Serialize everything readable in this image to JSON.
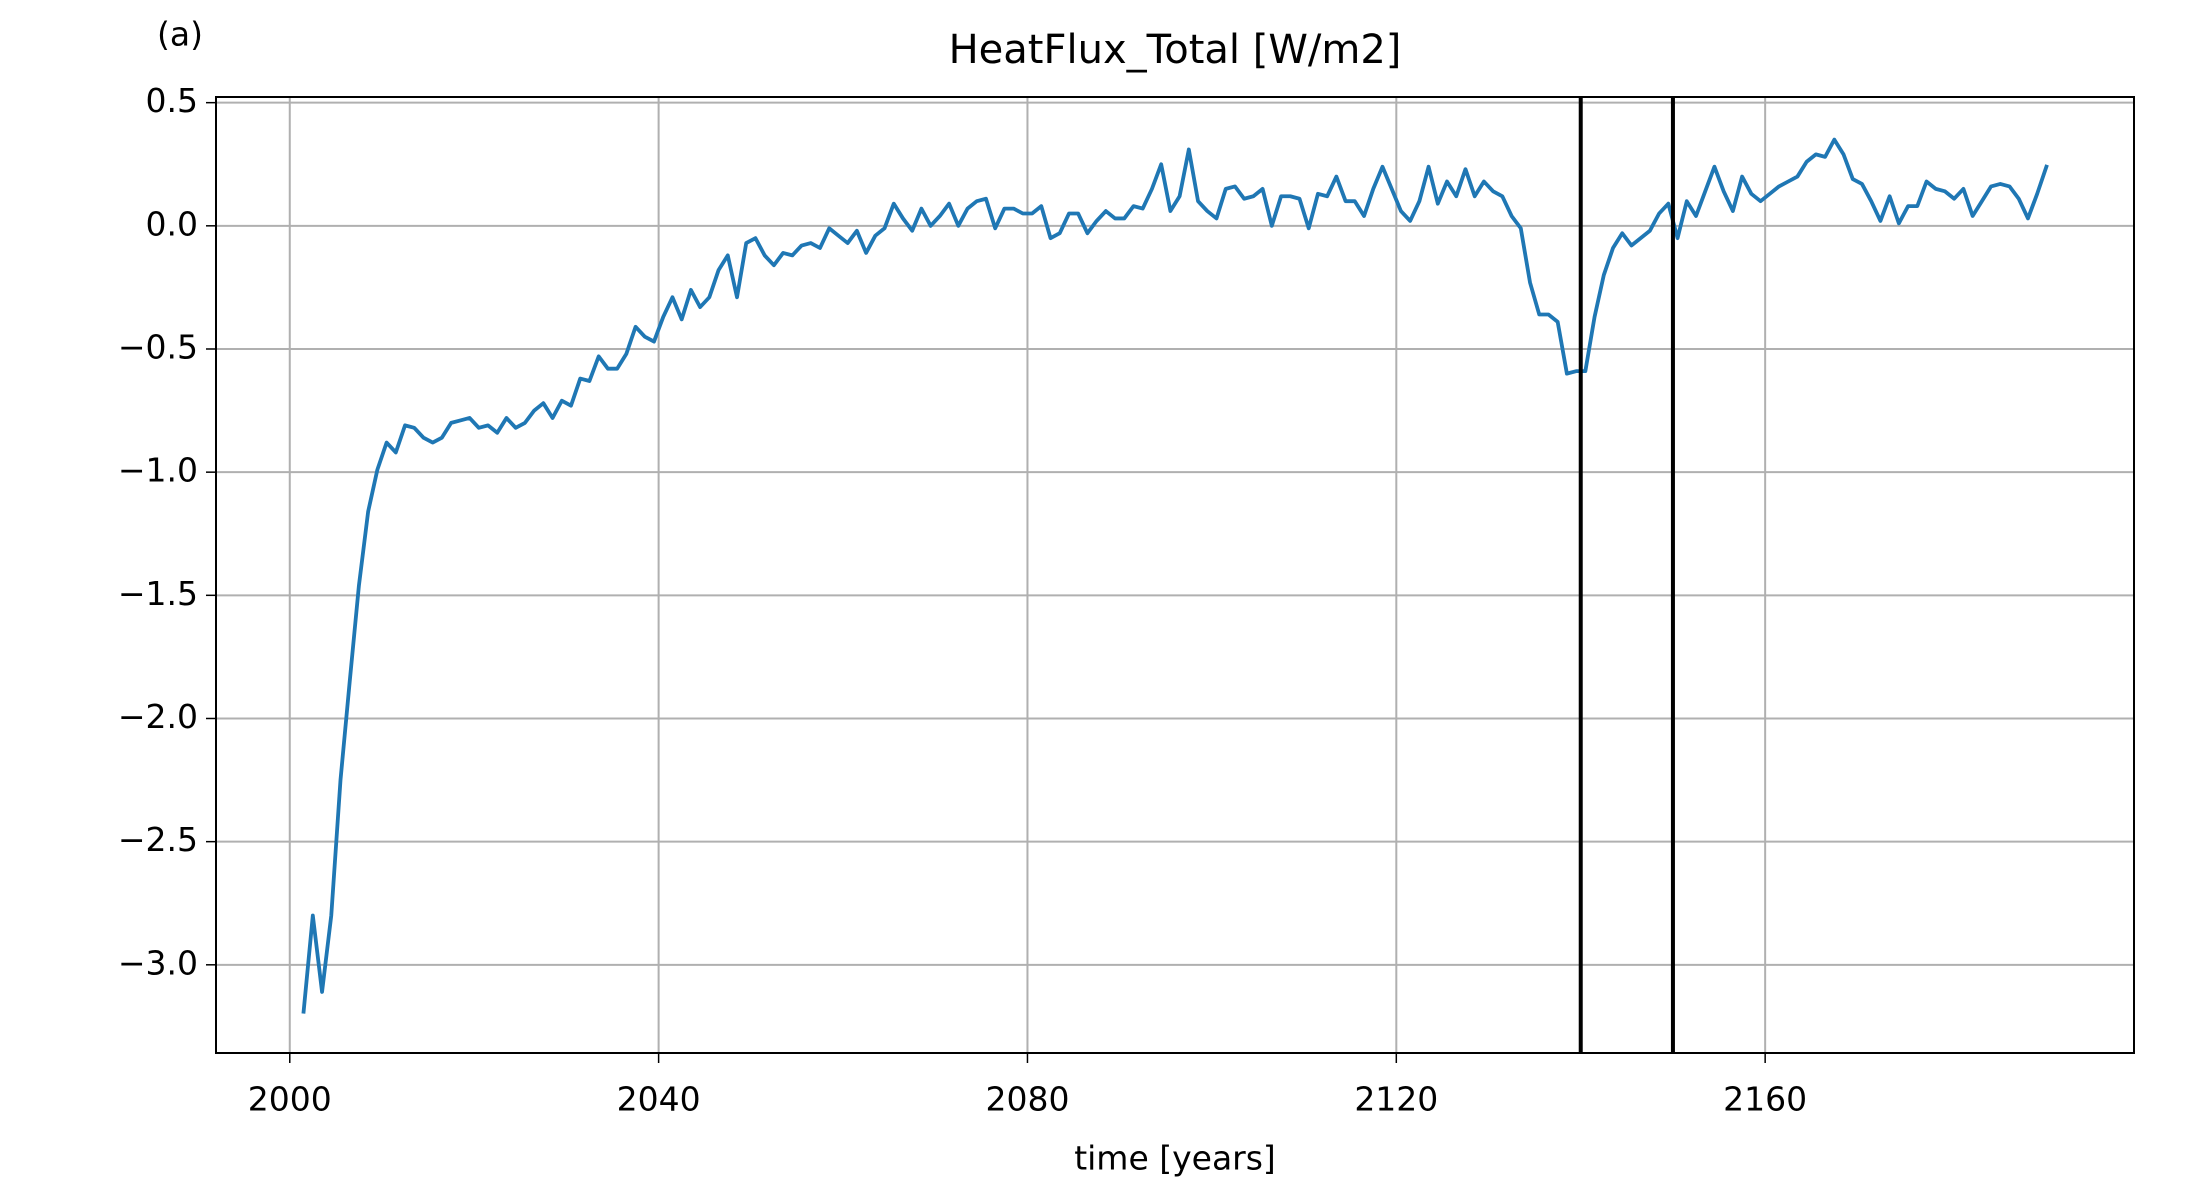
{
  "chart_data": {
    "type": "line",
    "panel_label": "(a)",
    "title": "HeatFlux_Total [W/m2]",
    "x_label": "time [years]",
    "x": [
      2001.5,
      2002.5,
      2003.5,
      2004.5,
      2005.5,
      2006.5,
      2007.5,
      2008.5,
      2009.5,
      2010.5,
      2011.5,
      2012.5,
      2013.5,
      2014.5,
      2015.5,
      2016.5,
      2017.5,
      2018.5,
      2019.5,
      2020.5,
      2021.5,
      2022.5,
      2023.5,
      2024.5,
      2025.5,
      2026.5,
      2027.5,
      2028.5,
      2029.5,
      2030.5,
      2031.5,
      2032.5,
      2033.5,
      2034.5,
      2035.5,
      2036.5,
      2037.5,
      2038.5,
      2039.5,
      2040.5,
      2041.5,
      2042.5,
      2043.5,
      2044.5,
      2045.5,
      2046.5,
      2047.5,
      2048.5,
      2049.5,
      2050.5,
      2051.5,
      2052.5,
      2053.5,
      2054.5,
      2055.5,
      2056.5,
      2057.5,
      2058.5,
      2059.5,
      2060.5,
      2061.5,
      2062.5,
      2063.5,
      2064.5,
      2065.5,
      2066.5,
      2067.5,
      2068.5,
      2069.5,
      2070.5,
      2071.5,
      2072.5,
      2073.5,
      2074.5,
      2075.5,
      2076.5,
      2077.5,
      2078.5,
      2079.5,
      2080.5,
      2081.5,
      2082.5,
      2083.5,
      2084.5,
      2085.5,
      2086.5,
      2087.5,
      2088.5,
      2089.5,
      2090.5,
      2091.5,
      2092.5,
      2093.5,
      2094.5,
      2095.5,
      2096.5,
      2097.5,
      2098.5,
      2099.5,
      2100.5,
      2101.5,
      2102.5,
      2103.5,
      2104.5,
      2105.5,
      2106.5,
      2107.5,
      2108.5,
      2109.5,
      2110.5,
      2111.5,
      2112.5,
      2113.5,
      2114.5,
      2115.5,
      2116.5,
      2117.5,
      2118.5,
      2119.5,
      2120.5,
      2121.5,
      2122.5,
      2123.5,
      2124.5,
      2125.5,
      2126.5,
      2127.5,
      2128.5,
      2129.5,
      2130.5,
      2131.5,
      2132.5,
      2133.5,
      2134.5,
      2135.5,
      2136.5,
      2137.5,
      2138.5,
      2139.5,
      2140.5,
      2141.5,
      2142.5,
      2143.5,
      2144.5,
      2145.5,
      2146.5,
      2147.5,
      2148.5,
      2149.5,
      2150.5,
      2151.5,
      2152.5,
      2153.5,
      2154.5,
      2155.5,
      2156.5,
      2157.5,
      2158.5,
      2159.5,
      2160.5,
      2161.5,
      2162.5,
      2163.5,
      2164.5,
      2165.5,
      2166.5,
      2167.5,
      2168.5,
      2169.5,
      2170.5,
      2171.5,
      2172.5,
      2173.5,
      2174.5,
      2175.5,
      2176.5,
      2177.5,
      2178.5,
      2179.5,
      2180.5,
      2181.5,
      2182.5,
      2183.5,
      2184.5,
      2185.5,
      2186.5,
      2187.5,
      2188.5,
      2189.5,
      2190.5
    ],
    "series": [
      {
        "color": "#1f77b4",
        "values": [
          -3.19,
          -2.8,
          -3.11,
          -2.8,
          -2.25,
          -1.85,
          -1.46,
          -1.16,
          -0.99,
          -0.88,
          -0.92,
          -0.81,
          -0.82,
          -0.86,
          -0.88,
          -0.86,
          -0.8,
          -0.79,
          -0.78,
          -0.82,
          -0.81,
          -0.84,
          -0.78,
          -0.82,
          -0.8,
          -0.75,
          -0.72,
          -0.78,
          -0.71,
          -0.73,
          -0.62,
          -0.63,
          -0.53,
          -0.58,
          -0.58,
          -0.52,
          -0.41,
          -0.45,
          -0.47,
          -0.37,
          -0.29,
          -0.38,
          -0.26,
          -0.33,
          -0.29,
          -0.18,
          -0.12,
          -0.29,
          -0.07,
          -0.05,
          -0.12,
          -0.16,
          -0.11,
          -0.12,
          -0.08,
          -0.07,
          -0.09,
          -0.01,
          -0.04,
          -0.07,
          -0.02,
          -0.11,
          -0.04,
          -0.01,
          0.09,
          0.03,
          -0.02,
          0.07,
          0.0,
          0.04,
          0.09,
          0.0,
          0.07,
          0.1,
          0.11,
          -0.01,
          0.07,
          0.07,
          0.05,
          0.05,
          0.08,
          -0.05,
          -0.03,
          0.05,
          0.05,
          -0.03,
          0.02,
          0.06,
          0.03,
          0.03,
          0.08,
          0.07,
          0.15,
          0.25,
          0.06,
          0.12,
          0.31,
          0.1,
          0.06,
          0.03,
          0.15,
          0.16,
          0.11,
          0.12,
          0.15,
          0.0,
          0.12,
          0.12,
          0.11,
          -0.01,
          0.13,
          0.12,
          0.2,
          0.1,
          0.1,
          0.04,
          0.15,
          0.24,
          0.15,
          0.06,
          0.02,
          0.1,
          0.24,
          0.09,
          0.18,
          0.12,
          0.23,
          0.12,
          0.18,
          0.14,
          0.12,
          0.04,
          -0.01,
          -0.23,
          -0.36,
          -0.36,
          -0.39,
          -0.6,
          -0.59,
          -0.59,
          -0.37,
          -0.2,
          -0.09,
          -0.03,
          -0.08,
          -0.05,
          -0.02,
          0.05,
          0.09,
          -0.05,
          0.1,
          0.04,
          0.14,
          0.24,
          0.14,
          0.06,
          0.2,
          0.13,
          0.1,
          0.13,
          0.16,
          0.18,
          0.2,
          0.26,
          0.29,
          0.28,
          0.35,
          0.29,
          0.19,
          0.17,
          0.1,
          0.02,
          0.12,
          0.01,
          0.08,
          0.08,
          0.18,
          0.15,
          0.14,
          0.11,
          0.15,
          0.04,
          0.1,
          0.16,
          0.17,
          0.16,
          0.11,
          0.03,
          0.13,
          0.24
        ]
      }
    ],
    "vlines": [
      2140,
      2150
    ],
    "vline_color": "#000000",
    "xlim": [
      1992,
      2200
    ],
    "ylim": [
      -3.358,
      0.523
    ],
    "xticks": [
      2000,
      2040,
      2080,
      2120,
      2160
    ],
    "yticks": [
      0.5,
      {
        "value": 0,
        "label": "0.0"
      },
      {
        "value": -0.5,
        "label": "−0.5"
      },
      {
        "value": -1,
        "label": "−1.0"
      },
      {
        "value": -1.5,
        "label": "−1.5"
      },
      {
        "value": -2,
        "label": "−2.0"
      },
      {
        "value": -2.5,
        "label": "−2.5"
      },
      {
        "value": -3,
        "label": "−3.0"
      }
    ],
    "grid": true
  }
}
